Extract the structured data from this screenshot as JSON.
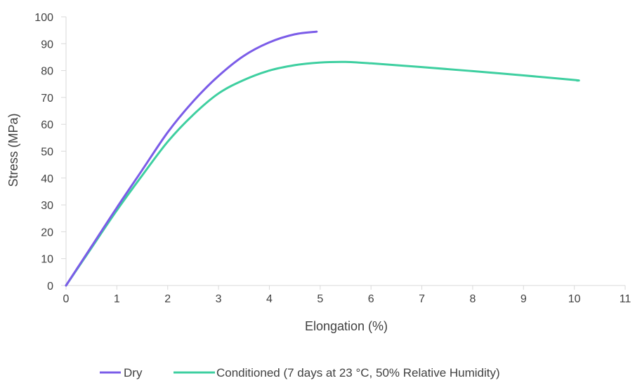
{
  "chart_data": {
    "type": "line",
    "title": "",
    "xlabel": "Elongation (%)",
    "ylabel": "Stress (MPa)",
    "xlim": [
      0,
      11
    ],
    "ylim": [
      0,
      100
    ],
    "xticks": [
      "0",
      "1",
      "2",
      "3",
      "4",
      "5",
      "6",
      "7",
      "8",
      "9",
      "10",
      "11"
    ],
    "yticks": [
      "0",
      "10",
      "20",
      "30",
      "40",
      "50",
      "60",
      "70",
      "80",
      "90",
      "100"
    ],
    "grid": false,
    "legend_position": "bottom",
    "series": [
      {
        "name": "Dry",
        "color": "#7b5ce8",
        "points": [
          [
            0,
            0
          ],
          [
            0.5,
            14.5
          ],
          [
            1,
            29
          ],
          [
            1.5,
            43
          ],
          [
            2,
            57
          ],
          [
            2.5,
            68.5
          ],
          [
            3,
            78
          ],
          [
            3.5,
            85.5
          ],
          [
            4,
            90.5
          ],
          [
            4.5,
            93.5
          ],
          [
            4.93,
            94.5
          ]
        ]
      },
      {
        "name": "Conditioned (7 days at 23 °C, 50% Relative Humidity)",
        "color": "#3ecfa0",
        "points": [
          [
            0,
            0
          ],
          [
            0.5,
            14
          ],
          [
            1,
            28
          ],
          [
            1.5,
            41
          ],
          [
            2,
            53.5
          ],
          [
            2.5,
            63.5
          ],
          [
            3,
            71.5
          ],
          [
            3.5,
            76.5
          ],
          [
            4,
            80
          ],
          [
            4.5,
            82
          ],
          [
            5,
            83
          ],
          [
            5.5,
            83.2
          ],
          [
            6,
            82.7
          ],
          [
            7,
            81.3
          ],
          [
            8,
            79.8
          ],
          [
            9,
            78.2
          ],
          [
            10,
            76.5
          ],
          [
            10.05,
            76.3
          ]
        ]
      }
    ]
  }
}
